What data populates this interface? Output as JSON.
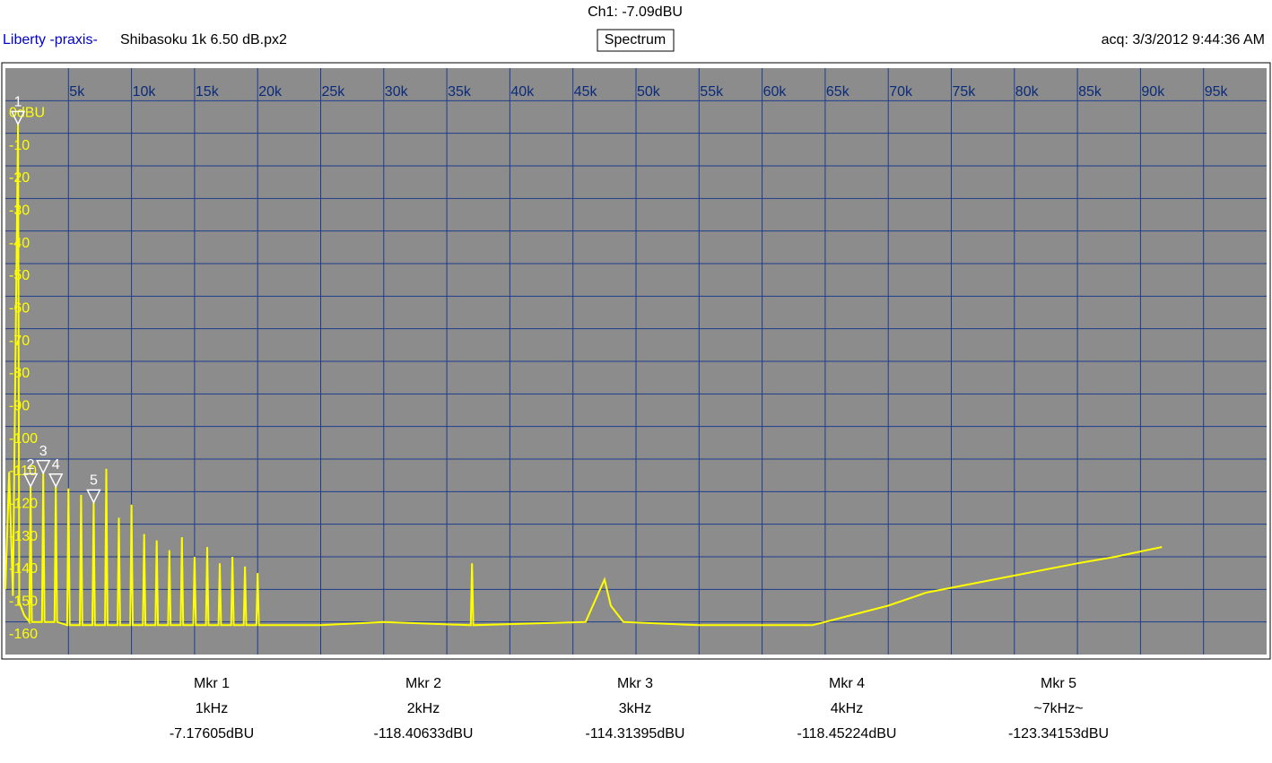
{
  "header": {
    "channel": "Ch1: -7.09dBU",
    "brand": "Liberty -praxis-",
    "file": "Shibasoku 1k 6.50 dB.px2",
    "mode": "Spectrum",
    "acquired": "acq: 3/3/2012 9:44:36 AM"
  },
  "chart_data": {
    "type": "line",
    "xlim": [
      0,
      100000
    ],
    "ylim": [
      -170,
      10
    ],
    "xticks": [
      {
        "value": 5000,
        "label": "5k"
      },
      {
        "value": 10000,
        "label": "10k"
      },
      {
        "value": 15000,
        "label": "15k"
      },
      {
        "value": 20000,
        "label": "20k"
      },
      {
        "value": 25000,
        "label": "25k"
      },
      {
        "value": 30000,
        "label": "30k"
      },
      {
        "value": 35000,
        "label": "35k"
      },
      {
        "value": 40000,
        "label": "40k"
      },
      {
        "value": 45000,
        "label": "45k"
      },
      {
        "value": 50000,
        "label": "50k"
      },
      {
        "value": 55000,
        "label": "55k"
      },
      {
        "value": 60000,
        "label": "60k"
      },
      {
        "value": 65000,
        "label": "65k"
      },
      {
        "value": 70000,
        "label": "70k"
      },
      {
        "value": 75000,
        "label": "75k"
      },
      {
        "value": 80000,
        "label": "80k"
      },
      {
        "value": 85000,
        "label": "85k"
      },
      {
        "value": 90000,
        "label": "90k"
      },
      {
        "value": 95000,
        "label": "95k"
      }
    ],
    "yticks": [
      {
        "value": 0,
        "label": "0dBU"
      },
      -10,
      -20,
      -30,
      -40,
      -50,
      -60,
      -70,
      -80,
      -90,
      -100,
      -110,
      -120,
      -130,
      -140,
      -150,
      -160
    ],
    "grid": true,
    "x": [
      0,
      300,
      600,
      1000,
      1100,
      1500,
      1900,
      2000,
      2100,
      2900,
      3000,
      3100,
      3900,
      4000,
      4100,
      4900,
      5000,
      5100,
      5900,
      6000,
      6100,
      6900,
      7000,
      7100,
      7900,
      8000,
      8100,
      8900,
      9000,
      9100,
      9900,
      10000,
      10100,
      10900,
      11000,
      11100,
      11900,
      12000,
      12100,
      12900,
      13000,
      13100,
      13900,
      14000,
      14100,
      14900,
      15000,
      15100,
      15900,
      16000,
      16100,
      16900,
      17000,
      17100,
      17900,
      18000,
      18100,
      18900,
      19000,
      19100,
      19900,
      20000,
      20100,
      25000,
      30000,
      36900,
      37000,
      37100,
      46000,
      47500,
      48000,
      49000,
      55000,
      60000,
      64000,
      67000,
      70000,
      73000,
      77000,
      81000,
      85000,
      88000,
      91700
    ],
    "series": [
      {
        "name": "Ch1",
        "color": "#ffff00",
        "values": [
          -150,
          -114,
          -152,
          -7.18,
          -154,
          -158,
          -160,
          -118.4,
          -160,
          -160,
          -114.3,
          -160,
          -160,
          -118.5,
          -160,
          -161,
          -119,
          -161,
          -161,
          -121,
          -161,
          -161,
          -123.3,
          -161,
          -161,
          -113,
          -161,
          -161,
          -128,
          -161,
          -161,
          -124,
          -161,
          -161,
          -133,
          -161,
          -161,
          -135,
          -161,
          -161,
          -138,
          -161,
          -161,
          -134,
          -161,
          -161,
          -140,
          -161,
          -161,
          -137,
          -161,
          -161,
          -142,
          -161,
          -161,
          -140,
          -161,
          -161,
          -143,
          -161,
          -161,
          -145,
          -161,
          -161,
          -160,
          -161,
          -142,
          -161,
          -160,
          -147,
          -155,
          -160,
          -161,
          -161,
          -161,
          -158,
          -155,
          -151,
          -148,
          -145,
          -142,
          -140,
          -137
        ]
      }
    ],
    "markers": {
      "labels": [
        "1",
        "2",
        "3",
        "4",
        "5"
      ],
      "x": [
        1000,
        2000,
        3000,
        4000,
        7000
      ],
      "names": [
        "Mkr 1",
        "Mkr 2",
        "Mkr 3",
        "Mkr 4",
        "Mkr 5"
      ],
      "freq_labels": [
        "1kHz",
        "2kHz",
        "3kHz",
        "4kHz",
        "~7kHz~"
      ],
      "values": [
        -7.17605,
        -118.40633,
        -114.31395,
        -118.45224,
        -123.34153
      ],
      "value_labels": [
        "-7.17605dBU",
        "-118.40633dBU",
        "-114.31395dBU",
        "-118.45224dBU",
        "-123.34153dBU"
      ]
    }
  }
}
